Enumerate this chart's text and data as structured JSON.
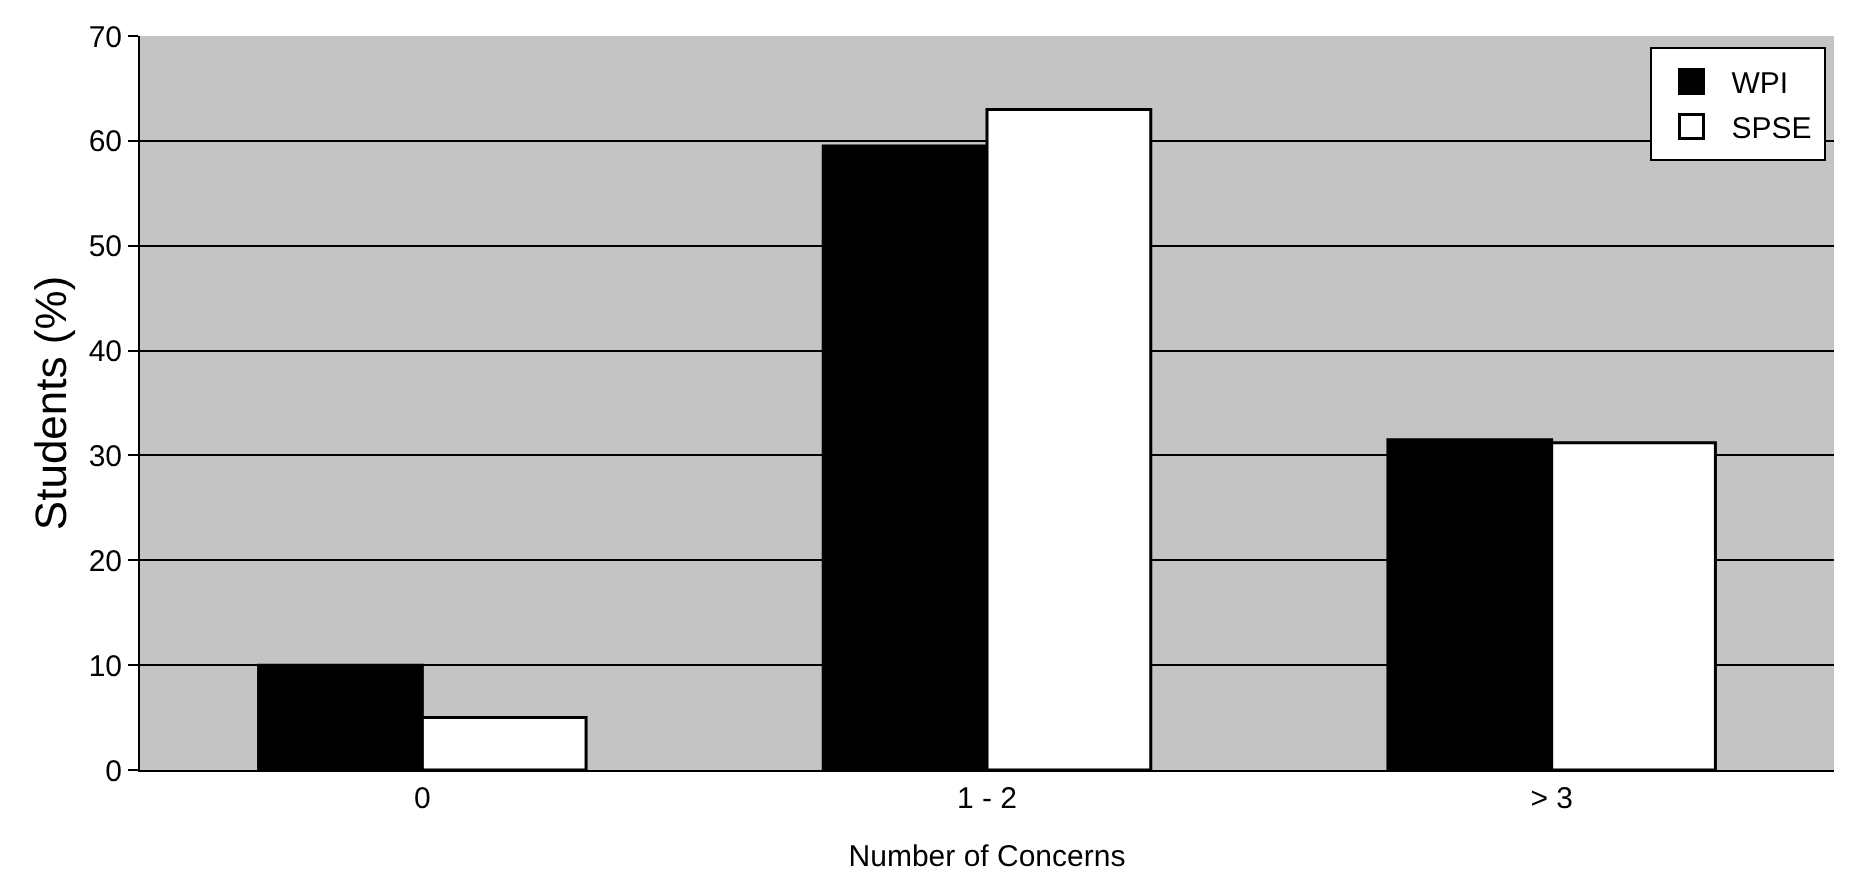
{
  "chart_data": {
    "type": "bar",
    "xlabel": "Number of Concerns",
    "ylabel": "Students (%)",
    "categories": [
      "0",
      "1 - 2",
      "> 3"
    ],
    "series": [
      {
        "name": "WPI",
        "color": "#000000",
        "values": [
          10,
          59.5,
          31.5
        ]
      },
      {
        "name": "SPSE",
        "color": "#ffffff",
        "values": [
          5,
          63,
          31.2
        ]
      }
    ],
    "ylim": [
      0,
      70
    ],
    "yticks": [
      0,
      10,
      20,
      30,
      40,
      50,
      60,
      70
    ],
    "grid": "y",
    "legend": "top right"
  }
}
